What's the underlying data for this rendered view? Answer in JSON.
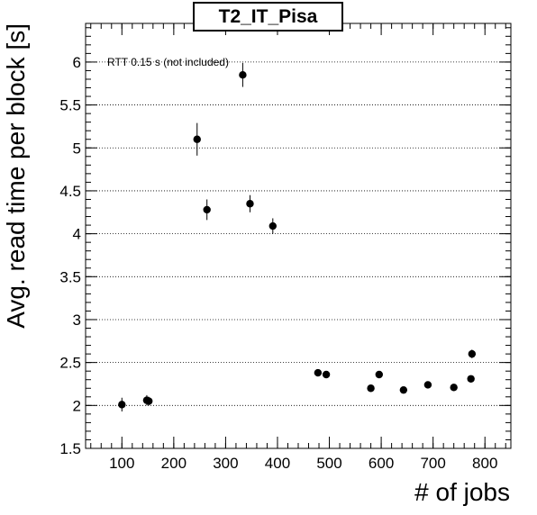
{
  "chart_data": {
    "type": "scatter",
    "title": "T2_IT_Pisa",
    "xlabel": "# of jobs",
    "ylabel": "Avg. read time per block [s]",
    "annotation": "RTT 0.15 s (not included)",
    "xlim": [
      30,
      850
    ],
    "ylim": [
      1.5,
      6.45
    ],
    "xticks": [
      100,
      200,
      300,
      400,
      500,
      600,
      700,
      800
    ],
    "xtick_labels": [
      "100",
      "200",
      "300",
      "400",
      "500",
      "600",
      "700",
      "800"
    ],
    "yticks": [
      1.5,
      2,
      2.5,
      3,
      3.5,
      4,
      4.5,
      5,
      5.5,
      6
    ],
    "ytick_labels": [
      "1.5",
      "2",
      "2.5",
      "3",
      "3.5",
      "4",
      "4.5",
      "5",
      "5.5",
      "6"
    ],
    "grid": "horizontal dotted",
    "marker_color": "#000000",
    "points": [
      {
        "x": 100,
        "y": 2.01,
        "err": 0.08
      },
      {
        "x": 148,
        "y": 2.06,
        "err": 0.06
      },
      {
        "x": 152,
        "y": 2.05,
        "err": 0.05
      },
      {
        "x": 245,
        "y": 5.1,
        "err": 0.19
      },
      {
        "x": 264,
        "y": 4.28,
        "err": 0.12
      },
      {
        "x": 333,
        "y": 5.85,
        "err": 0.14
      },
      {
        "x": 347,
        "y": 4.35,
        "err": 0.1
      },
      {
        "x": 391,
        "y": 4.09,
        "err": 0.09
      },
      {
        "x": 478,
        "y": 2.38,
        "err": 0.04
      },
      {
        "x": 494,
        "y": 2.36,
        "err": 0.04
      },
      {
        "x": 580,
        "y": 2.2,
        "err": 0.03
      },
      {
        "x": 596,
        "y": 2.36,
        "err": 0.04
      },
      {
        "x": 643,
        "y": 2.18,
        "err": 0.03
      },
      {
        "x": 690,
        "y": 2.24,
        "err": 0.03
      },
      {
        "x": 740,
        "y": 2.21,
        "err": 0.03
      },
      {
        "x": 773,
        "y": 2.31,
        "err": 0.04
      },
      {
        "x": 775,
        "y": 2.6,
        "err": 0.05
      }
    ]
  }
}
